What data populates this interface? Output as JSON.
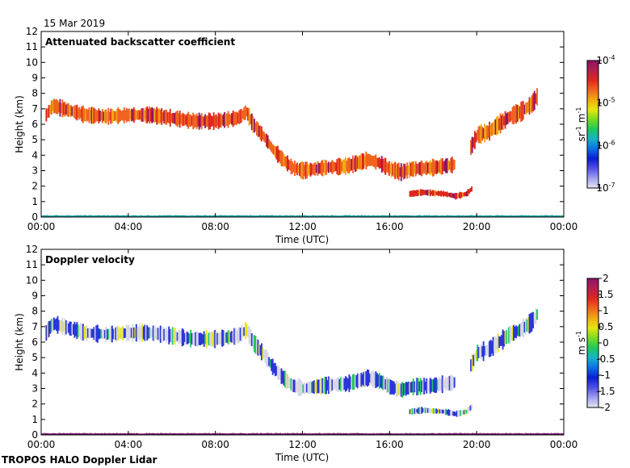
{
  "header": {
    "date": "15 Mar 2019"
  },
  "footer": {
    "label": "TROPOS HALO Doppler Lidar"
  },
  "colors": {
    "colormap": [
      "#e6e6f2",
      "#a0a0f0",
      "#5050e6",
      "#0a1ed2",
      "#0a6ee6",
      "#14b4c8",
      "#1ec85a",
      "#78dc1e",
      "#e6e614",
      "#f0aa14",
      "#f0641e",
      "#dc281e",
      "#b41e50",
      "#8c1466"
    ],
    "velocity_near_zero": "#d7d7e3",
    "velocity_negative": "#2b36d8",
    "surface_green": "#1aa0a0"
  },
  "chart_data": [
    {
      "type": "heatmap",
      "title": "Attenuated backscatter coefficient",
      "xlabel": "Time (UTC)",
      "ylabel": "Height (km)",
      "xlim": [
        "00:00",
        "00:00"
      ],
      "xticks": [
        "00:00",
        "04:00",
        "08:00",
        "12:00",
        "16:00",
        "20:00",
        "00:00"
      ],
      "ylim": [
        0,
        12
      ],
      "yticks": [
        "0",
        "1",
        "2",
        "3",
        "4",
        "5",
        "6",
        "7",
        "8",
        "9",
        "10",
        "11",
        "12"
      ],
      "colorbar": {
        "label": "sr-1 m-1",
        "label_base": [
          "sr",
          "m"
        ],
        "label_sup": [
          "-1",
          "-1"
        ],
        "scale": "log",
        "range": [
          1e-07,
          0.0001
        ],
        "ticks": [
          {
            "value": 0.0001,
            "base": "10",
            "exp": "-4"
          },
          {
            "value": 1e-05,
            "base": "10",
            "exp": "-5"
          },
          {
            "value": 1e-06,
            "base": "10",
            "exp": "-6"
          },
          {
            "value": 1e-07,
            "base": "10",
            "exp": "-7"
          }
        ]
      },
      "layers": [
        {
          "name": "upper cloud",
          "points": [
            [
              0.2,
              6.6
            ],
            [
              0.5,
              7.2
            ],
            [
              1.0,
              7.0
            ],
            [
              2.0,
              6.6
            ],
            [
              3.0,
              6.5
            ],
            [
              4.0,
              6.6
            ],
            [
              5.0,
              6.6
            ],
            [
              6.0,
              6.4
            ],
            [
              7.0,
              6.2
            ],
            [
              8.0,
              6.2
            ],
            [
              9.0,
              6.4
            ],
            [
              9.4,
              6.8
            ],
            [
              9.7,
              6.0
            ],
            [
              10.2,
              5.2
            ],
            [
              10.6,
              4.4
            ],
            [
              11.0,
              3.8
            ],
            [
              11.5,
              3.2
            ],
            [
              12.0,
              3.0
            ],
            [
              13.0,
              3.2
            ],
            [
              14.0,
              3.3
            ],
            [
              15.0,
              3.7
            ],
            [
              15.5,
              3.5
            ],
            [
              16.0,
              3.1
            ],
            [
              16.5,
              2.9
            ],
            [
              17.0,
              3.1
            ],
            [
              18.0,
              3.2
            ],
            [
              19.0,
              3.4
            ]
          ],
          "thickness_km": 0.9,
          "level": 10.5
        },
        {
          "name": "lower cloud",
          "points": [
            [
              16.9,
              1.5
            ],
            [
              17.5,
              1.6
            ],
            [
              18.0,
              1.55
            ],
            [
              18.5,
              1.5
            ],
            [
              19.0,
              1.35
            ],
            [
              19.5,
              1.5
            ],
            [
              19.8,
              1.9
            ]
          ],
          "thickness_km": 0.35,
          "level": 11.5
        },
        {
          "name": "evening cloud",
          "points": [
            [
              19.7,
              4.5
            ],
            [
              20.0,
              5.3
            ],
            [
              20.5,
              5.5
            ],
            [
              21.0,
              6.0
            ],
            [
              21.5,
              6.5
            ],
            [
              22.0,
              6.8
            ],
            [
              22.5,
              7.3
            ],
            [
              22.8,
              7.9
            ]
          ],
          "thickness_km": 1.0,
          "level": 10.5
        },
        {
          "name": "surface",
          "points": [
            [
              0.0,
              0.05
            ],
            [
              24.0,
              0.05
            ]
          ],
          "thickness_km": 0.12,
          "level": 5.0
        }
      ]
    },
    {
      "type": "heatmap",
      "title": "Doppler velocity",
      "xlabel": "Time (UTC)",
      "ylabel": "Height (km)",
      "xlim": [
        "00:00",
        "00:00"
      ],
      "xticks": [
        "00:00",
        "04:00",
        "08:00",
        "12:00",
        "16:00",
        "20:00",
        "00:00"
      ],
      "ylim": [
        0,
        12
      ],
      "yticks": [
        "0",
        "1",
        "2",
        "3",
        "4",
        "5",
        "6",
        "7",
        "8",
        "9",
        "10",
        "11",
        "12"
      ],
      "colorbar": {
        "label": "m s-1",
        "label_base": [
          "m",
          "s"
        ],
        "label_sup": [
          "",
          "-1"
        ],
        "scale": "linear",
        "range": [
          -2,
          2
        ],
        "ticks": [
          {
            "value": 2,
            "text": "2"
          },
          {
            "value": 1.5,
            "text": "1.5"
          },
          {
            "value": 1,
            "text": "1"
          },
          {
            "value": 0.5,
            "text": "0.5"
          },
          {
            "value": 0,
            "text": "0"
          },
          {
            "value": -0.5,
            "text": "-0.5"
          },
          {
            "value": -1,
            "text": "-1"
          },
          {
            "value": -1.5,
            "text": "-1.5"
          },
          {
            "value": -2,
            "text": "-2"
          }
        ]
      },
      "layers": [
        {
          "name": "upper cloud",
          "points": [
            [
              0.2,
              6.6
            ],
            [
              0.5,
              7.2
            ],
            [
              1.0,
              7.0
            ],
            [
              2.0,
              6.6
            ],
            [
              3.0,
              6.5
            ],
            [
              4.0,
              6.6
            ],
            [
              5.0,
              6.6
            ],
            [
              6.0,
              6.4
            ],
            [
              7.0,
              6.2
            ],
            [
              8.0,
              6.2
            ],
            [
              9.0,
              6.4
            ],
            [
              9.4,
              6.8
            ],
            [
              9.7,
              6.0
            ],
            [
              10.2,
              5.2
            ],
            [
              10.6,
              4.4
            ],
            [
              11.0,
              3.8
            ],
            [
              11.5,
              3.2
            ],
            [
              12.0,
              3.0
            ],
            [
              13.0,
              3.2
            ],
            [
              14.0,
              3.3
            ],
            [
              15.0,
              3.7
            ],
            [
              15.5,
              3.5
            ],
            [
              16.0,
              3.1
            ],
            [
              16.5,
              2.9
            ],
            [
              17.0,
              3.1
            ],
            [
              18.0,
              3.2
            ],
            [
              19.0,
              3.4
            ]
          ],
          "thickness_km": 0.9,
          "level": -1.2
        },
        {
          "name": "lower cloud",
          "points": [
            [
              16.9,
              1.5
            ],
            [
              17.5,
              1.6
            ],
            [
              18.0,
              1.55
            ],
            [
              18.5,
              1.5
            ],
            [
              19.0,
              1.35
            ],
            [
              19.5,
              1.5
            ],
            [
              19.8,
              1.9
            ]
          ],
          "thickness_km": 0.35,
          "level": -1.0
        },
        {
          "name": "evening cloud",
          "points": [
            [
              19.7,
              4.5
            ],
            [
              20.0,
              5.3
            ],
            [
              20.5,
              5.5
            ],
            [
              21.0,
              6.0
            ],
            [
              21.5,
              6.5
            ],
            [
              22.0,
              6.8
            ],
            [
              22.5,
              7.3
            ],
            [
              22.8,
              7.9
            ]
          ],
          "thickness_km": 1.0,
          "level": -0.8
        },
        {
          "name": "surface",
          "points": [
            [
              0.0,
              0.05
            ],
            [
              24.0,
              0.05
            ]
          ],
          "thickness_km": 0.12,
          "level": 0.0
        }
      ]
    }
  ]
}
